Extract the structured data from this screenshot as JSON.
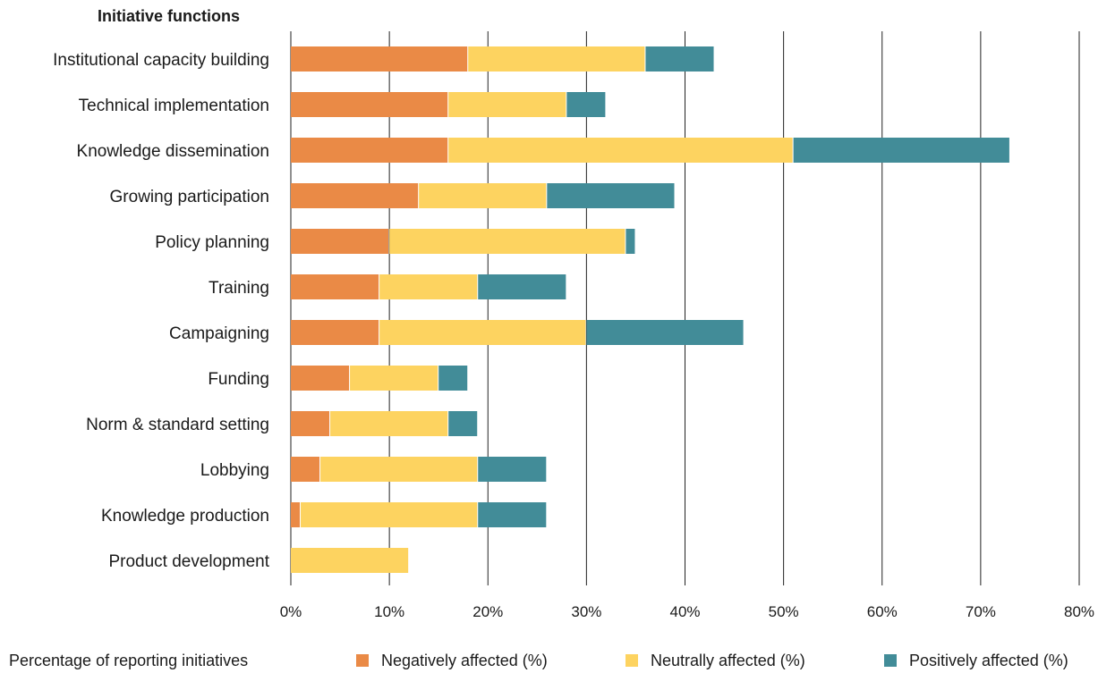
{
  "chart_data": {
    "type": "bar",
    "orientation": "horizontal",
    "stacked": true,
    "title": "Initiative functions",
    "xlabel": "Percentage of reporting initiatives",
    "xlim": [
      0,
      80
    ],
    "xticks": [
      0,
      10,
      20,
      30,
      40,
      50,
      60,
      70,
      80
    ],
    "xtick_labels": [
      "0%",
      "10%",
      "20%",
      "30%",
      "40%",
      "50%",
      "60%",
      "70%",
      "80%"
    ],
    "grid": "vertical",
    "legend_position": "bottom",
    "categories": [
      "Institutional capacity building",
      "Technical implementation",
      "Knowledge dissemination",
      "Growing participation",
      "Policy planning",
      "Training",
      "Campaigning",
      "Funding",
      "Norm & standard setting",
      "Lobbying",
      "Knowledge production",
      "Product development"
    ],
    "series": [
      {
        "name": "Negatively affected (%)",
        "color": "#ea8a46",
        "values": [
          18,
          16,
          16,
          13,
          10,
          9,
          9,
          6,
          4,
          3,
          1,
          0
        ]
      },
      {
        "name": "Neutrally affected (%)",
        "color": "#fdd360",
        "values": [
          18,
          12,
          35,
          13,
          24,
          10,
          21,
          9,
          12,
          16,
          18,
          12
        ]
      },
      {
        "name": "Positively affected (%)",
        "color": "#428c98",
        "values": [
          7,
          4,
          22,
          13,
          1,
          9,
          16,
          3,
          3,
          7,
          7,
          0
        ]
      }
    ]
  }
}
